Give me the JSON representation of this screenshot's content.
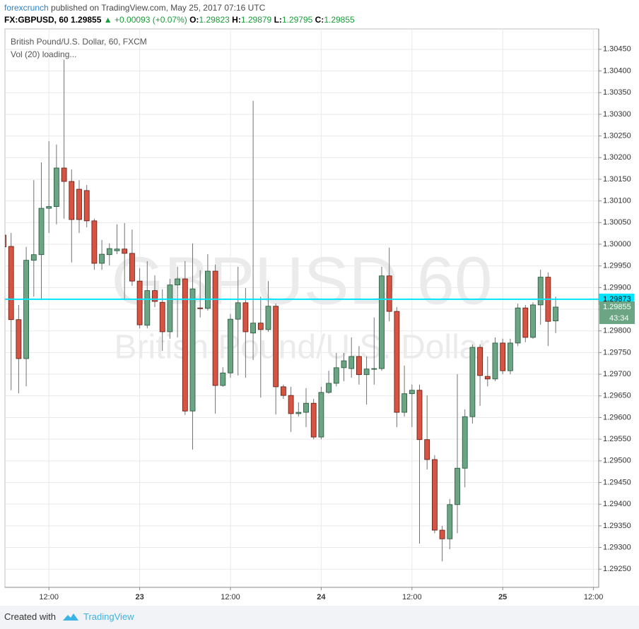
{
  "header": {
    "author": "forexcrunch",
    "published": "published on TradingView.com, May 25, 2017 07:16 UTC",
    "symbol": "FX:GBPUSD, 60",
    "last": "1.29855",
    "change": "+0.00093 (+0.07%)",
    "open_label": "O:",
    "open": "1.29823",
    "high_label": "H:",
    "high": "1.29879",
    "low_label": "L:",
    "low": "1.29795",
    "close_label": "C:",
    "close": "1.29855"
  },
  "chart_data": {
    "type": "candlestick",
    "title": "British Pound/U.S. Dollar, 60, FXCM",
    "subtitle": "Vol (20) loading...",
    "watermark_symbol": "GBPUSD 60",
    "watermark_name": "British Pound/U.S. Dollar",
    "categories": [
      null,
      null,
      null,
      null,
      null,
      null,
      "12:00",
      null,
      null,
      null,
      null,
      null,
      null,
      null,
      null,
      null,
      null,
      null,
      "23",
      null,
      null,
      null,
      null,
      null,
      null,
      null,
      null,
      null,
      null,
      null,
      "12:00",
      null,
      null,
      null,
      null,
      null,
      null,
      null,
      null,
      null,
      null,
      null,
      "24",
      null,
      null,
      null,
      null,
      null,
      null,
      null,
      null,
      null,
      null,
      null,
      "12:00",
      null,
      null,
      null,
      null,
      null,
      null,
      null,
      null,
      null,
      null,
      null,
      "25",
      null,
      null,
      null,
      null,
      null,
      null,
      null,
      null,
      null,
      null,
      null,
      "12:00"
    ],
    "open": [
      1.30021,
      1.29995,
      1.29826,
      1.29736,
      1.29963,
      1.29976,
      1.30083,
      1.30087,
      1.30176,
      1.30145,
      1.30127,
      1.30124,
      1.30054,
      1.29956,
      1.29976,
      1.29985,
      1.29989,
      1.29979,
      1.29915,
      1.29813,
      1.29893,
      1.29866,
      1.29798,
      1.29906,
      1.2992,
      1.29615,
      1.29853,
      1.29852,
      1.29938,
      1.29674,
      1.29703,
      1.29827,
      1.29865,
      1.29795,
      1.29818,
      1.29803,
      1.29857,
      1.29671,
      1.29651,
      1.29609,
      1.29612,
      1.29633,
      1.29555,
      1.29658,
      1.29679,
      1.29715,
      1.29713,
      1.29741,
      1.29699,
      1.29712,
      1.29713,
      1.29927,
      1.29845,
      1.29612,
      1.29655,
      1.29663,
      1.29549,
      1.29503,
      1.2934,
      1.2932,
      1.29399,
      1.29483,
      1.29602,
      1.29762,
      1.29695,
      1.29689,
      1.29772,
      1.29708,
      1.29772,
      1.29853,
      1.29785,
      1.2986,
      1.29924,
      1.29823,
      null,
      null,
      null,
      null,
      null
    ],
    "high": [
      1.30042,
      1.30026,
      1.2986,
      1.29994,
      1.30148,
      1.30189,
      1.30238,
      1.3023,
      1.30426,
      1.30173,
      1.30148,
      1.30137,
      1.30059,
      1.3001,
      1.30002,
      1.30046,
      1.30049,
      1.30034,
      1.29945,
      1.29961,
      1.29928,
      1.29896,
      1.2992,
      1.29948,
      1.29961,
      1.30002,
      1.2994,
      1.29977,
      1.29953,
      1.29716,
      1.29839,
      1.29948,
      1.29899,
      1.30331,
      1.29879,
      1.29915,
      1.29863,
      1.29676,
      1.29671,
      1.29635,
      1.29668,
      1.29643,
      1.29671,
      1.29708,
      1.29749,
      1.29749,
      1.29785,
      1.29765,
      1.29741,
      1.29831,
      1.29948,
      1.29992,
      1.29855,
      1.2972,
      1.29676,
      1.29676,
      1.29651,
      1.29513,
      1.2935,
      1.29412,
      1.297,
      1.29619,
      1.29769,
      1.29769,
      1.29741,
      1.29785,
      1.29782,
      1.29782,
      1.29863,
      1.2986,
      1.29866,
      1.29941,
      1.29935,
      1.29879,
      null,
      null,
      null,
      null,
      null
    ],
    "low": [
      1.29985,
      1.29663,
      1.29656,
      1.29672,
      1.29879,
      1.29871,
      1.30026,
      1.30046,
      1.30059,
      1.29958,
      1.30026,
      1.30039,
      1.29941,
      1.29941,
      1.29951,
      1.29977,
      1.29871,
      1.29904,
      1.29806,
      1.29806,
      1.29855,
      1.29754,
      1.29782,
      1.29785,
      1.29606,
      1.29526,
      1.29831,
      1.29847,
      1.29609,
      1.29671,
      1.29692,
      1.29697,
      1.29692,
      1.29733,
      1.29646,
      1.29798,
      1.29607,
      1.29643,
      1.29567,
      1.29602,
      1.29578,
      1.2955,
      1.2955,
      1.29655,
      1.29672,
      1.29684,
      1.29692,
      1.29676,
      1.2963,
      1.29676,
      1.29708,
      1.29822,
      1.29578,
      1.29602,
      1.29578,
      1.29309,
      1.2948,
      1.29333,
      1.29268,
      1.29296,
      1.29333,
      1.29439,
      1.29586,
      1.29627,
      1.29672,
      1.29684,
      1.297,
      1.297,
      1.29765,
      1.29774,
      1.29782,
      1.29814,
      1.29765,
      1.29795,
      null,
      null,
      null,
      null,
      null
    ],
    "close": [
      1.29994,
      1.29826,
      1.29736,
      1.29963,
      1.29976,
      1.30083,
      1.30087,
      1.30176,
      1.30145,
      1.30057,
      1.30057,
      1.30054,
      1.29956,
      1.29977,
      1.2999,
      1.29989,
      1.29979,
      1.29915,
      1.29814,
      1.29893,
      1.29868,
      1.29798,
      1.29906,
      1.2992,
      1.29615,
      1.29897,
      1.29852,
      1.29938,
      1.29674,
      1.29703,
      1.29827,
      1.29865,
      1.29798,
      1.29818,
      1.29803,
      1.29857,
      1.29671,
      1.29651,
      1.29609,
      1.29612,
      1.29633,
      1.29555,
      1.29658,
      1.29679,
      1.29715,
      1.29731,
      1.29741,
      1.29699,
      1.29712,
      1.29713,
      1.29927,
      1.29845,
      1.29612,
      1.29655,
      1.29663,
      1.29549,
      1.29503,
      1.2934,
      1.2932,
      1.29399,
      1.29483,
      1.29602,
      1.29762,
      1.29697,
      1.29689,
      1.29772,
      1.29708,
      1.29772,
      1.29853,
      1.29785,
      1.2986,
      1.29924,
      1.29822,
      1.29855,
      null,
      null,
      null,
      null,
      null
    ],
    "up_color": "#6ba583",
    "down_color": "#d75442",
    "ylim": [
      1.29208,
      1.30497
    ],
    "yticks": [
      {
        "value": 1.2925,
        "label": "1.29250"
      },
      {
        "value": 1.293,
        "label": "1.29300"
      },
      {
        "value": 1.2935,
        "label": "1.29350"
      },
      {
        "value": 1.294,
        "label": "1.29400"
      },
      {
        "value": 1.2945,
        "label": "1.29450"
      },
      {
        "value": 1.295,
        "label": "1.29500"
      },
      {
        "value": 1.2955,
        "label": "1.29550"
      },
      {
        "value": 1.296,
        "label": "1.29600"
      },
      {
        "value": 1.2965,
        "label": "1.29650"
      },
      {
        "value": 1.297,
        "label": "1.29700"
      },
      {
        "value": 1.2975,
        "label": "1.29750"
      },
      {
        "value": 1.298,
        "label": "1.29800"
      },
      {
        "value": 1.2985,
        "label": "1.29850"
      },
      {
        "value": 1.299,
        "label": "1.29900"
      },
      {
        "value": 1.2995,
        "label": "1.29950"
      },
      {
        "value": 1.3,
        "label": "1.30000"
      },
      {
        "value": 1.3005,
        "label": "1.30050"
      },
      {
        "value": 1.301,
        "label": "1.30100"
      },
      {
        "value": 1.3015,
        "label": "1.30150"
      },
      {
        "value": 1.302,
        "label": "1.30200"
      },
      {
        "value": 1.3025,
        "label": "1.30250"
      },
      {
        "value": 1.303,
        "label": "1.30300"
      },
      {
        "value": 1.3035,
        "label": "1.30350"
      },
      {
        "value": 1.304,
        "label": "1.30400"
      },
      {
        "value": 1.3045,
        "label": "1.30450"
      }
    ],
    "grid": true,
    "price_line": 1.29873,
    "price_line_color": "#00e5ff",
    "last_price": 1.29855,
    "countdown": "43:34"
  },
  "footer": {
    "created_with": "Created with",
    "brand": "TradingView"
  }
}
